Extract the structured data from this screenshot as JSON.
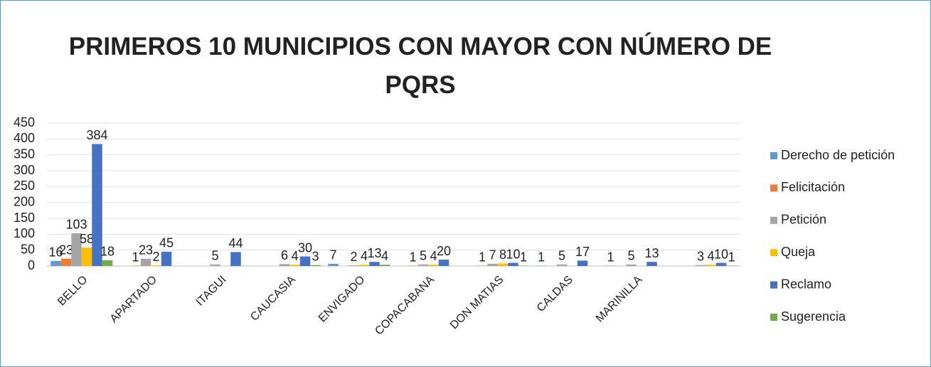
{
  "chart_data": {
    "type": "bar",
    "title": "PRIMEROS 10 MUNICIPIOS CON MAYOR CON NÚMERO DE PQRS",
    "categories": [
      "BELLO",
      "APARTADO",
      "ITAGUI",
      "CAUCASIA",
      "ENVIGADO",
      "COPACABANA",
      "DON MATIAS",
      "CALDAS",
      "MARINILLA",
      null
    ],
    "series": [
      {
        "name": "Derecho de petición",
        "color": "#5b9bd5",
        "values": [
          16,
          null,
          null,
          null,
          7,
          null,
          null,
          1,
          1,
          null
        ]
      },
      {
        "name": "Felicitación",
        "color": "#ed7d31",
        "values": [
          23,
          1,
          null,
          null,
          null,
          1,
          1,
          null,
          null,
          null
        ]
      },
      {
        "name": "Petición",
        "color": "#a5a5a5",
        "values": [
          103,
          23,
          5,
          6,
          2,
          5,
          7,
          5,
          5,
          3
        ]
      },
      {
        "name": "Queja",
        "color": "#ffc000",
        "values": [
          58,
          2,
          null,
          4,
          4,
          4,
          8,
          null,
          null,
          4
        ]
      },
      {
        "name": "Reclamo",
        "color": "#4472c4",
        "values": [
          384,
          45,
          44,
          30,
          13,
          20,
          10,
          17,
          13,
          10
        ]
      },
      {
        "name": "Sugerencia",
        "color": "#70ad47",
        "values": [
          18,
          null,
          null,
          3,
          4,
          null,
          1,
          null,
          null,
          1
        ]
      }
    ],
    "ylim": [
      0,
      450
    ],
    "yticks": [
      0,
      50,
      100,
      150,
      200,
      250,
      300,
      350,
      400,
      450
    ],
    "grid": true,
    "legend": "right"
  }
}
